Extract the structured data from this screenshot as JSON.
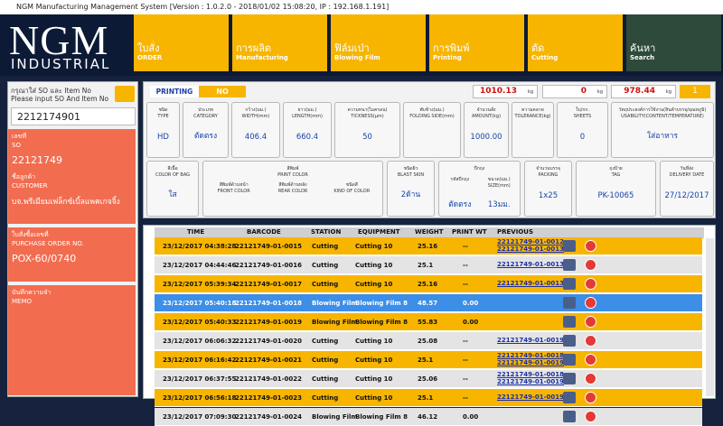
{
  "title_bar": "NGM Manufacturing Management System [Version : 1.0.2.0 - 2018/01/02 15:08:20, IP : 192.168.1.191]",
  "logo": {
    "name": "NGM",
    "sub": "INDUSTRIAL"
  },
  "nav": [
    {
      "th": "ใบสั่ง",
      "en": "ORDER"
    },
    {
      "th": "การผลิต",
      "en": "Manufacturing"
    },
    {
      "th": "ฟิล์มเป่า",
      "en": "Blowing Film"
    },
    {
      "th": "การพิมพ์",
      "en": "Printing"
    },
    {
      "th": "ตัด",
      "en": "Cutting"
    },
    {
      "th": "ค้นหา",
      "en": "Search"
    }
  ],
  "search": {
    "prompt_th": "กรุณาใส่ SO และ Item No",
    "prompt_en": "Please input SO And Item No",
    "input": "2212174901"
  },
  "info": [
    {
      "label_th": "เลขที่",
      "label_en": "SO",
      "value": "22121749"
    },
    {
      "label_th": "ชื่อลูกค้า",
      "label_en": "CUSTOMER",
      "value": "บจ.พรีเมียมเฟล็กซ์เบิ้ลแพคเกจจิ้ง"
    },
    {
      "label_th": "ใบสั่งซื้อเลขที่",
      "label_en": "PURCHASE ORDER NO.",
      "value": "POX-60/0740"
    },
    {
      "label_th": "บันทึกความจำ",
      "label_en": "MEMO"
    }
  ],
  "status": {
    "printing_label": "PRINTING",
    "printing_value": "NO",
    "weights": [
      {
        "value": "1010.13",
        "unit": "kg"
      },
      {
        "value": "0",
        "unit": "kg"
      },
      {
        "value": "978.44",
        "unit": "kg"
      }
    ],
    "count": "1"
  },
  "spec_row1": [
    {
      "label_th": "ชนิด",
      "label_en": "TYPE",
      "value": "HD"
    },
    {
      "label_th": "ประเภท",
      "label_en": "CATEGORY",
      "value": "ตัดตรง"
    },
    {
      "label_th": "กว้าง(มม.)",
      "label_en": "WIDTH(mm)",
      "value": "406.4"
    },
    {
      "label_th": "ยาว(มม.)",
      "label_en": "LENGTH(mm)",
      "value": "660.4"
    },
    {
      "label_th": "ความหนา(ไมครอน)",
      "label_en": "TICKNESS(µm)",
      "value": "50"
    },
    {
      "label_th": "พับข้าง(มม.)",
      "label_en": "FOLDING SIDE(mm)"
    },
    {
      "label_th": "จำนวนสั่ง",
      "label_en": "AMOUNT(kg)",
      "value": "1000.00"
    },
    {
      "label_th": "ความคลาด",
      "label_en": "TOLERANCE(kg)"
    },
    {
      "label_th": "ใบ/กก.",
      "label_en": "SHEETS",
      "value": "0"
    },
    {
      "label_th": "วัตถุประสงค์การใช้งาน(สินค้าบรรจุ/อุณหภูมิ)",
      "label_en": "USABILITY(CONTENT/TEMPERATURE)",
      "value": "ใส่อาหาร"
    }
  ],
  "spec_row2": [
    {
      "label_th": "สีเนื้อ",
      "label_en": "COLOR OF BAG",
      "value": "ใส"
    },
    {
      "label_th": "สีพิมพ์",
      "label_en": "PRINT COLOR",
      "subs": [
        {
          "label_th": "สีพิมพ์ด้านหน้า",
          "label_en": "FRONT COLOR"
        },
        {
          "label_th": "สีพิมพ์ด้านหลัง",
          "label_en": "REAR COLOR"
        },
        {
          "label_th": "ชนิดสี",
          "label_en": "KIND OF COLOR"
        }
      ]
    },
    {
      "label_th": "ชนิดผิว",
      "label_en": "BLAST SKIN",
      "value": "2ด้าน"
    },
    {
      "label_th": "ปีกถุง",
      "subs": [
        {
          "label_th": "รหัสปีกถุง",
          "value": "ตัดตรง"
        },
        {
          "label_th": "ขนาด(มม.)",
          "label_en": "SIZE(mm)",
          "value": "13มม."
        }
      ]
    },
    {
      "label_th": "จำนวนบรรจุ",
      "label_en": "PACKING",
      "value": "1x25"
    },
    {
      "label_th": "ถุงป้าย",
      "label_en": "TAG",
      "value": "PK-10065"
    },
    {
      "label_th": "วันที่ส่ง",
      "label_en": "DELIVERY DATE",
      "value": "27/12/2017"
    }
  ],
  "table": {
    "columns": [
      "TIME",
      "BARCODE",
      "STATION",
      "EQUIPMENT",
      "WEIGHT",
      "PRINT WT",
      "PREVIOUS"
    ],
    "rows": [
      {
        "time": "23/12/2017 04:38:28",
        "barcode": "22121749-01-0015",
        "station": "Cutting",
        "equipment": "Cutting 10",
        "weight": "25.16",
        "print_wt": "--",
        "previous": [
          "22121749-01-0012",
          "22121749-01-0013"
        ]
      },
      {
        "time": "23/12/2017 04:44:46",
        "barcode": "22121749-01-0016",
        "station": "Cutting",
        "equipment": "Cutting 10",
        "weight": "25.1",
        "print_wt": "--",
        "previous": [
          "22121749-01-0013"
        ]
      },
      {
        "time": "23/12/2017 05:39:34",
        "barcode": "22121749-01-0017",
        "station": "Cutting",
        "equipment": "Cutting 10",
        "weight": "25.16",
        "print_wt": "--",
        "previous": [
          "22121749-01-0013"
        ]
      },
      {
        "time": "23/12/2017 05:40:18",
        "barcode": "22121749-01-0018",
        "station": "Blowing Film",
        "equipment": "Blowing Film 8",
        "weight": "48.57",
        "print_wt": "0.00",
        "selected": true
      },
      {
        "time": "23/12/2017 05:40:33",
        "barcode": "22121749-01-0019",
        "station": "Blowing Film",
        "equipment": "Blowing Film 8",
        "weight": "55.83",
        "print_wt": "0.00"
      },
      {
        "time": "23/12/2017 06:06:32",
        "barcode": "22121749-01-0020",
        "station": "Cutting",
        "equipment": "Cutting 10",
        "weight": "25.08",
        "print_wt": "--",
        "previous": [
          "22121749-01-0019"
        ]
      },
      {
        "time": "23/12/2017 06:16:42",
        "barcode": "22121749-01-0021",
        "station": "Cutting",
        "equipment": "Cutting 10",
        "weight": "25.1",
        "print_wt": "--",
        "previous": [
          "22121749-01-0018",
          "22121749-01-0019"
        ]
      },
      {
        "time": "23/12/2017 06:37:55",
        "barcode": "22121749-01-0022",
        "station": "Cutting",
        "equipment": "Cutting 10",
        "weight": "25.06",
        "print_wt": "--",
        "previous": [
          "22121749-01-0018",
          "22121749-01-0019"
        ]
      },
      {
        "time": "23/12/2017 06:56:18",
        "barcode": "22121749-01-0023",
        "station": "Cutting",
        "equipment": "Cutting 10",
        "weight": "25.1",
        "print_wt": "--",
        "previous": [
          "22121749-01-0019"
        ]
      },
      {
        "time": "23/12/2017 07:09:30",
        "barcode": "22121749-01-0024",
        "station": "Blowing Film",
        "equipment": "Blowing Film 8",
        "weight": "46.12",
        "print_wt": "0.00"
      }
    ]
  }
}
